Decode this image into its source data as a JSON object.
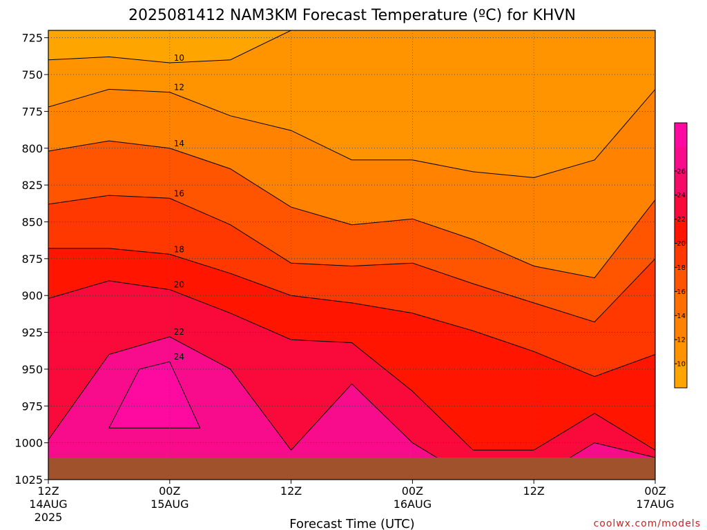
{
  "page": {
    "title": "2025081412 NAM3KM Forecast Temperature (ºC) for KHVN",
    "credit": "coolwx.com/models"
  },
  "chart_data": {
    "type": "heatmap",
    "title": "2025081412 NAM3KM Forecast Temperature (ºC) for KHVN",
    "xlabel": "Forecast Time (UTC)",
    "ylabel": "",
    "x_ticks": [
      {
        "label": "12Z",
        "sub": "14AUG",
        "sub2": "2025",
        "hours": 0
      },
      {
        "label": "00Z",
        "sub": "15AUG",
        "hours": 12
      },
      {
        "label": "12Z",
        "sub": "",
        "hours": 24
      },
      {
        "label": "00Z",
        "sub": "16AUG",
        "hours": 36
      },
      {
        "label": "12Z",
        "sub": "",
        "hours": 48
      },
      {
        "label": "00Z",
        "sub": "17AUG",
        "hours": 60
      }
    ],
    "xlim_hours": [
      0,
      60
    ],
    "y_ticks": [
      "725",
      "750",
      "775",
      "800",
      "825",
      "850",
      "875",
      "900",
      "925",
      "950",
      "975",
      "1000",
      "1025"
    ],
    "ylim": [
      720,
      1025
    ],
    "y_reversed": true,
    "grid": true,
    "colorbar": {
      "ticks": [
        "10",
        "12",
        "14",
        "16",
        "18",
        "20",
        "22",
        "24",
        "26"
      ],
      "colors": [
        "#ffa500",
        "#ff9400",
        "#ff8300",
        "#ff6e00",
        "#ff5500",
        "#ff3800",
        "#ff1500",
        "#fa0a3a",
        "#f70b68",
        "#f80c8c",
        "#ff0aa0"
      ],
      "range": [
        8,
        30
      ]
    },
    "contour_labels": [
      "10",
      "12",
      "14",
      "16",
      "18",
      "20",
      "22",
      "24"
    ],
    "series": [
      {
        "name": "10",
        "x": [
          0,
          6,
          12,
          18,
          24,
          36,
          48,
          60
        ],
        "y": [
          740,
          738,
          742,
          740,
          720,
          720,
          720,
          720
        ]
      },
      {
        "name": "12",
        "x": [
          0,
          6,
          12,
          18,
          24,
          30,
          36,
          42,
          48,
          54,
          60
        ],
        "y": [
          772,
          760,
          762,
          778,
          788,
          808,
          808,
          816,
          820,
          808,
          760
        ]
      },
      {
        "name": "14",
        "x": [
          0,
          6,
          12,
          18,
          24,
          30,
          36,
          42,
          48,
          54,
          60
        ],
        "y": [
          802,
          795,
          800,
          814,
          840,
          852,
          848,
          862,
          880,
          888,
          835
        ]
      },
      {
        "name": "16",
        "x": [
          0,
          6,
          12,
          18,
          24,
          30,
          36,
          42,
          48,
          54,
          60
        ],
        "y": [
          838,
          832,
          834,
          852,
          878,
          880,
          878,
          892,
          905,
          918,
          875
        ]
      },
      {
        "name": "18",
        "x": [
          0,
          6,
          12,
          18,
          24,
          30,
          36,
          42,
          48,
          54,
          60
        ],
        "y": [
          868,
          868,
          872,
          885,
          900,
          905,
          912,
          924,
          938,
          955,
          940
        ]
      },
      {
        "name": "20",
        "x": [
          0,
          6,
          12,
          18,
          24,
          30,
          36,
          42,
          48,
          54,
          60
        ],
        "y": [
          902,
          890,
          896,
          912,
          930,
          932,
          965,
          1005,
          1005,
          980,
          1005
        ]
      },
      {
        "name": "22",
        "x": [
          0,
          6,
          12,
          18,
          24,
          30,
          36,
          42,
          48,
          54,
          60
        ],
        "y": [
          998,
          940,
          928,
          950,
          1005,
          960,
          1000,
          1025,
          1025,
          1000,
          1010
        ]
      },
      {
        "name": "24",
        "x": [
          6,
          9,
          12,
          15
        ],
        "y": [
          990,
          950,
          945,
          990
        ]
      }
    ],
    "surface_pressure": 1010
  }
}
